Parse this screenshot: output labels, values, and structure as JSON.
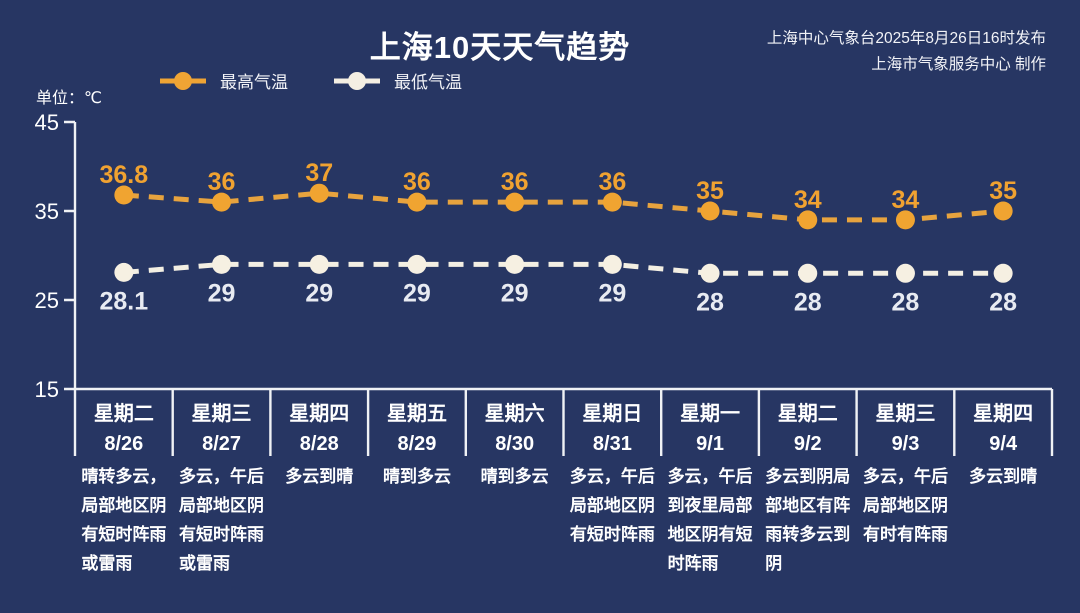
{
  "header": {
    "title": "上海10天天气趋势",
    "publish_line1": "上海中心气象台2025年8月26日16时发布",
    "publish_line2": "上海市气象服务中心 制作",
    "unit_label": "单位：℃"
  },
  "legend": [
    {
      "label": "最高气温",
      "color": "#EFA434"
    },
    {
      "label": "最低气温",
      "color": "#F4EFE3"
    }
  ],
  "colors": {
    "background": "#273663",
    "axis": "#F0F2F5",
    "high_line": "#E7A33E",
    "high_dot": "#F0A431",
    "high_label": "#F0A231",
    "low_line": "#F3EFE3",
    "low_dot": "#F6F0E2",
    "low_label": "#E8EBF2",
    "text": "#FFFFFF"
  },
  "chart_data": {
    "type": "line",
    "title": "上海10天天气趋势",
    "ylabel": "单位：℃",
    "ylim": [
      15,
      45
    ],
    "y_ticks": [
      45,
      35,
      25,
      15
    ],
    "grid": false,
    "legend_position": "top-left",
    "categories": [
      {
        "weekday": "星期二",
        "date": "8/26",
        "desc_lines": [
          "晴转多云，",
          "局部地区阴",
          "有短时阵雨",
          "或雷雨"
        ]
      },
      {
        "weekday": "星期三",
        "date": "8/27",
        "desc_lines": [
          "多云，午后",
          "局部地区阴",
          "有短时阵雨",
          "或雷雨"
        ]
      },
      {
        "weekday": "星期四",
        "date": "8/28",
        "desc_lines": [
          "多云到晴"
        ]
      },
      {
        "weekday": "星期五",
        "date": "8/29",
        "desc_lines": [
          "晴到多云"
        ]
      },
      {
        "weekday": "星期六",
        "date": "8/30",
        "desc_lines": [
          "晴到多云"
        ]
      },
      {
        "weekday": "星期日",
        "date": "8/31",
        "desc_lines": [
          "多云，午后",
          "局部地区阴",
          "有短时阵雨"
        ]
      },
      {
        "weekday": "星期一",
        "date": "9/1",
        "desc_lines": [
          "多云，午后",
          "到夜里局部",
          "地区阴有短",
          "时阵雨"
        ]
      },
      {
        "weekday": "星期二",
        "date": "9/2",
        "desc_lines": [
          "多云到阴局",
          "部地区有阵",
          "雨转多云到",
          "阴"
        ]
      },
      {
        "weekday": "星期三",
        "date": "9/3",
        "desc_lines": [
          "多云，午后",
          "局部地区阴",
          "有时有阵雨"
        ]
      },
      {
        "weekday": "星期四",
        "date": "9/4",
        "desc_lines": [
          "多云到晴"
        ]
      }
    ],
    "series": [
      {
        "name": "最高气温",
        "values": [
          36.8,
          36,
          37,
          36,
          36,
          36,
          35,
          34,
          34,
          35
        ]
      },
      {
        "name": "最低气温",
        "values": [
          28.1,
          29,
          29,
          29,
          29,
          29,
          28,
          28,
          28,
          28
        ]
      }
    ]
  }
}
